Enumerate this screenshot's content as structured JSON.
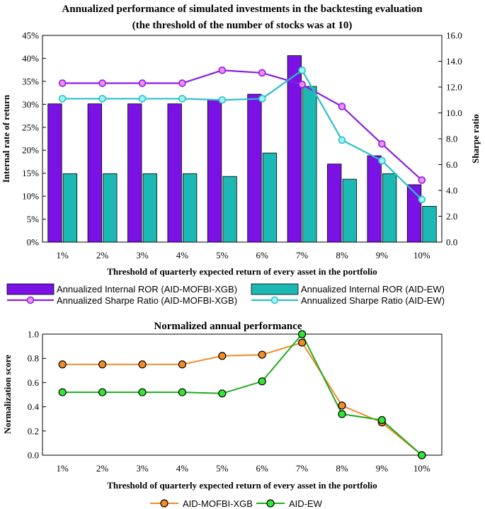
{
  "chart_data": [
    {
      "type": "bar",
      "title": "Annualized performance of simulated investments in the backtesting evaluation",
      "subtitle": "(the threshold of the number of stocks was at 10)",
      "xlabel": "Threshold of quarterly expected return of every asset in the portfolio",
      "ylabel": "Internal rate of return",
      "y2label": "Sharpe ratio",
      "categories": [
        "1%",
        "2%",
        "3%",
        "4%",
        "5%",
        "6%",
        "7%",
        "8%",
        "9%",
        "10%"
      ],
      "ylim": [
        0,
        45
      ],
      "yticks": [
        "0%",
        "5%",
        "10%",
        "15%",
        "20%",
        "25%",
        "30%",
        "35%",
        "40%",
        "45%"
      ],
      "y2lim": [
        0,
        16
      ],
      "y2ticks": [
        "0.0",
        "2.0",
        "4.0",
        "6.0",
        "8.0",
        "10.0",
        "12.0",
        "14.0",
        "16.0"
      ],
      "legend_position": "bottom",
      "series": [
        {
          "name": "Annualized Internal ROR (AID-MOFBI-XGB)",
          "kind": "bar",
          "axis": "left",
          "color": "#7A12E6",
          "values": [
            30.1,
            30.1,
            30.1,
            30.1,
            31.0,
            32.2,
            40.6,
            17.0,
            18.8,
            12.5
          ]
        },
        {
          "name": "Annualized Internal ROR (AID-EW)",
          "kind": "bar",
          "axis": "left",
          "color": "#1BB8B4",
          "values": [
            14.9,
            14.9,
            14.9,
            14.9,
            14.3,
            19.4,
            33.9,
            13.7,
            14.9,
            7.8
          ]
        },
        {
          "name": "Annualized Sharpe Ratio (AID-MOFBI-XGB)",
          "kind": "line",
          "axis": "right",
          "color": "#8A1EE6",
          "marker_fill": "#F08FEF",
          "values": [
            12.3,
            12.3,
            12.3,
            12.3,
            13.3,
            13.1,
            12.2,
            10.5,
            7.6,
            4.8
          ]
        },
        {
          "name": "Annualized Sharpe Ratio (AID-EW)",
          "kind": "line",
          "axis": "right",
          "color": "#2BBFC8",
          "marker_fill": "#9FF5F2",
          "values": [
            11.1,
            11.1,
            11.1,
            11.1,
            11.0,
            11.1,
            13.3,
            7.9,
            6.3,
            3.3
          ]
        }
      ]
    },
    {
      "type": "line",
      "title": "Normalized annual performance",
      "xlabel": "Threshold of quarterly expected return of every asset in the portfolio",
      "ylabel": "Normalization score",
      "categories": [
        "1%",
        "2%",
        "3%",
        "4%",
        "5%",
        "6%",
        "7%",
        "8%",
        "9%",
        "10%"
      ],
      "ylim": [
        0,
        1.0
      ],
      "yticks": [
        "0.0",
        "0.2",
        "0.4",
        "0.6",
        "0.8",
        "1.0"
      ],
      "legend_position": "bottom",
      "series": [
        {
          "name": "AID-MOFBI-XGB",
          "color": "#F28C28",
          "marker_fill": "#F28C28",
          "values": [
            0.75,
            0.75,
            0.75,
            0.75,
            0.82,
            0.83,
            0.93,
            0.41,
            0.27,
            0.0
          ]
        },
        {
          "name": "AID-EW",
          "color": "#1FAA1F",
          "marker_fill": "#33E633",
          "values": [
            0.52,
            0.52,
            0.52,
            0.52,
            0.51,
            0.61,
            1.0,
            0.34,
            0.29,
            0.0
          ]
        }
      ]
    }
  ]
}
